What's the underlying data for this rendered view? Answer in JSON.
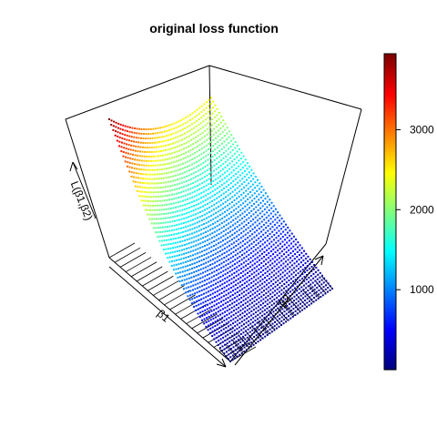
{
  "chart_data": {
    "type": "surface3d",
    "title": "original loss function",
    "xlabel": "β1",
    "ylabel": "β2",
    "zlabel": "L(β1,β2)",
    "z_range": [
      0,
      3950
    ],
    "colorbar": {
      "palette": "jet",
      "ticks": [
        1000,
        2000,
        3000
      ],
      "tick_labels": [
        "1000",
        "2000",
        "3000"
      ]
    }
  }
}
